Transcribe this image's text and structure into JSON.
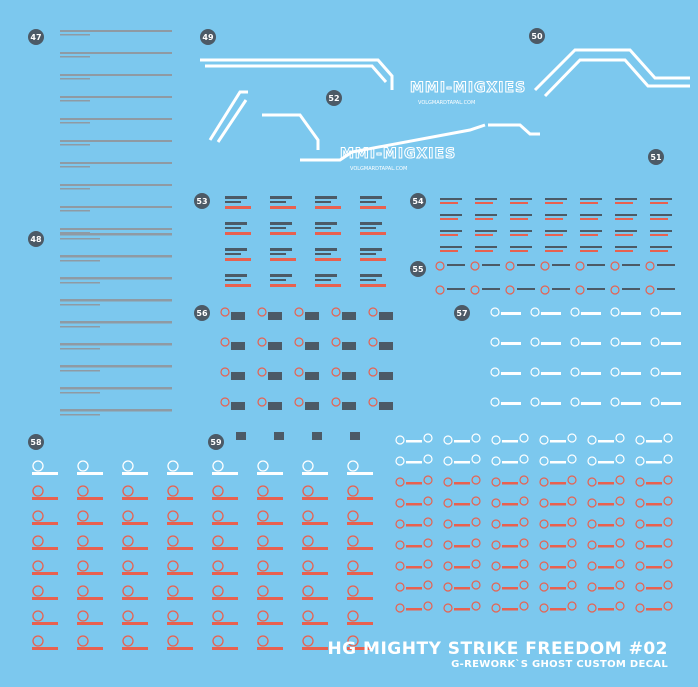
{
  "sheet": {
    "background": "#7cc8ee",
    "title": "HG MIGHTY STRIKE FREEDOM #02",
    "subtitle": "G-REWORK`S GHOST CUSTOM DECAL",
    "logo_text": "MMI-MIGXIES",
    "logo_subtext": "VOLGMARDTAPAL.COM",
    "colors": {
      "white": "#ffffff",
      "grey": "#8f9aa3",
      "dark": "#4c5a66",
      "red": "#e8614f"
    }
  },
  "labels": {
    "n47": "47",
    "n48": "48",
    "n49": "49",
    "n50": "50",
    "n51": "51",
    "n52": "52",
    "n53": "53",
    "n54": "54",
    "n55": "55",
    "n56": "56",
    "n57": "57",
    "n58": "58",
    "n59": "59"
  }
}
